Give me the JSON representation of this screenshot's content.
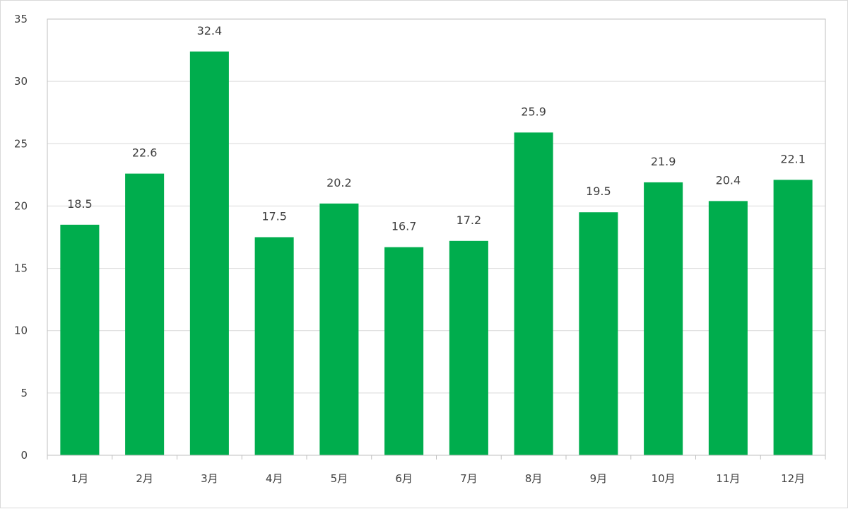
{
  "chart_data": {
    "type": "bar",
    "categories": [
      "1月",
      "2月",
      "3月",
      "4月",
      "5月",
      "6月",
      "7月",
      "8月",
      "9月",
      "10月",
      "11月",
      "12月"
    ],
    "values": [
      18.5,
      22.6,
      32.4,
      17.5,
      20.2,
      16.7,
      17.2,
      25.9,
      19.5,
      21.9,
      20.4,
      22.1
    ],
    "ylim": [
      0,
      35
    ],
    "yticks": [
      0,
      5,
      10,
      15,
      20,
      25,
      30,
      35
    ],
    "grid": true,
    "data_labels": true,
    "bar_color": "#00ad4d",
    "grid_color": "#d9d9d9",
    "axis_color": "#bfbfbf",
    "text_color": "#404040"
  }
}
